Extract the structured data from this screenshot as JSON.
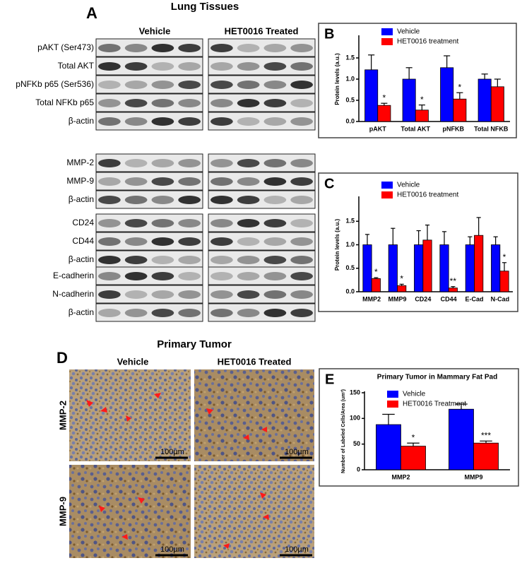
{
  "blots": {
    "label": "A",
    "title": "Lung Tissues",
    "groups": [
      "Vehicle",
      "HET0016 Treated"
    ],
    "sections": [
      [
        "pAKT (Ser473)",
        "Total AKT",
        "pNFKb p65 (Ser536)",
        "Total NFKb p65",
        "β-actin"
      ],
      [
        "MMP-2",
        "MMP-9",
        "β-actin"
      ],
      [
        "CD24",
        "CD44",
        "β-actin"
      ],
      [
        "E-cadherin",
        "N-cadherin",
        "β-actin"
      ]
    ]
  },
  "histology": {
    "label": "D",
    "title": "Primary Tumor",
    "groups": [
      "Vehicle",
      "HET0016 Treated"
    ],
    "rows": [
      "MMP-2",
      "MMP-9"
    ],
    "scale_bar": "100µm"
  },
  "chart_data": [
    {
      "type": "bar",
      "panel_label": "B",
      "y_label": "Protein levels (a.u.)",
      "categories": [
        "pAKT",
        "Total AKT",
        "pNFKB",
        "Total NFKB"
      ],
      "series": [
        {
          "name": "Vehicle",
          "color": "#0000ff",
          "values": [
            1.22,
            1.0,
            1.27,
            1.0
          ],
          "errors": [
            0.35,
            0.27,
            0.28,
            0.12
          ],
          "annotations": [
            null,
            null,
            null,
            null
          ]
        },
        {
          "name": "HET0016 treatment",
          "color": "#ff0000",
          "values": [
            0.38,
            0.27,
            0.53,
            0.82
          ],
          "errors": [
            0.05,
            0.12,
            0.15,
            0.18
          ],
          "annotations": [
            "*",
            "*",
            "*",
            null
          ]
        }
      ],
      "ylim": [
        0,
        2
      ],
      "yticks": [
        {
          "value": 0,
          "label": "0.0"
        },
        0.5,
        {
          "value": 1,
          "label": "1.0"
        },
        1.5
      ]
    },
    {
      "type": "bar",
      "panel_label": "C",
      "y_label": "Protein levels (a.u.)",
      "categories": [
        "MMP2",
        "MMP9",
        "CD24",
        "CD44",
        "E-Cad",
        "N-Cad"
      ],
      "series": [
        {
          "name": "Vehicle",
          "color": "#0000ff",
          "values": [
            1.0,
            1.0,
            1.0,
            1.0,
            1.0,
            1.0
          ],
          "errors": [
            0.22,
            0.35,
            0.3,
            0.28,
            0.17,
            0.17
          ],
          "annotations": [
            null,
            null,
            null,
            null,
            null,
            null
          ]
        },
        {
          "name": "HET0016 treatment",
          "color": "#ff0000",
          "values": [
            0.28,
            0.13,
            1.1,
            0.08,
            1.2,
            0.44
          ],
          "errors": [
            0.02,
            0.03,
            0.32,
            0.03,
            0.38,
            0.18
          ],
          "annotations": [
            "*",
            "*",
            null,
            "**",
            null,
            "*"
          ]
        }
      ],
      "ylim": [
        0,
        2
      ],
      "yticks": [
        {
          "value": 0,
          "label": "0.0"
        },
        0.5,
        {
          "value": 1,
          "label": "1.0"
        },
        1.5
      ]
    },
    {
      "type": "bar",
      "panel_label": "E",
      "title": "Primary Tumor in Mammary Fat Pad",
      "y_label": "Number of Labeled Cells/Area (um²)",
      "categories": [
        "MMP2",
        "MMP9"
      ],
      "series": [
        {
          "name": "Vehicle",
          "color": "#0000ff",
          "values": [
            88,
            118
          ],
          "errors": [
            20,
            10
          ],
          "annotations": [
            null,
            null
          ]
        },
        {
          "name": "HET0016 Treatment",
          "color": "#ff0000",
          "values": [
            46,
            52
          ],
          "errors": [
            6,
            4
          ],
          "annotations": [
            "*",
            "***"
          ]
        }
      ],
      "ylim": [
        0,
        150
      ],
      "yticks": [
        0,
        50,
        100,
        150
      ]
    }
  ]
}
